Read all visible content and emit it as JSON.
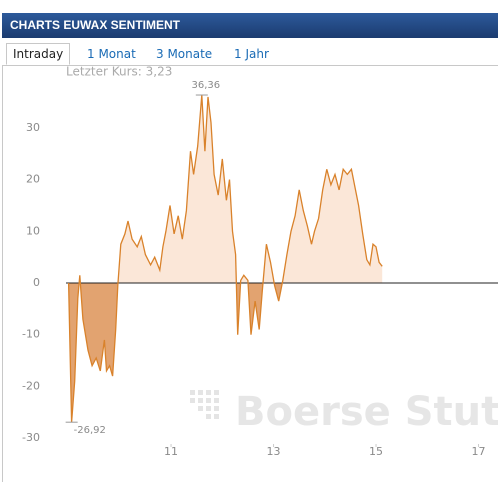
{
  "chart_data": {
    "type": "area",
    "title": "CHARTS EUWAX SENTIMENT",
    "tabs": [
      "Intraday",
      "1 Monat",
      "3 Monate",
      "1 Jahr"
    ],
    "subtitle": "Letzter Kurs: 3,23",
    "watermark": "Boerse Stuttgart",
    "max_label": "36,36",
    "min_label": "-26,92",
    "x": [
      9.0,
      9.06,
      9.12,
      9.18,
      9.22,
      9.28,
      9.38,
      9.46,
      9.54,
      9.62,
      9.7,
      9.74,
      9.8,
      9.86,
      9.92,
      9.96,
      10.02,
      10.1,
      10.16,
      10.24,
      10.34,
      10.42,
      10.5,
      10.6,
      10.68,
      10.78,
      10.84,
      10.9,
      10.98,
      11.06,
      11.14,
      11.22,
      11.3,
      11.38,
      11.44,
      11.52,
      11.6,
      11.66,
      11.72,
      11.78,
      11.84,
      11.92,
      12.0,
      12.08,
      12.14,
      12.2,
      12.26,
      12.3,
      12.36,
      12.42,
      12.5,
      12.56,
      12.64,
      12.72,
      12.78,
      12.86,
      12.94,
      13.02,
      13.1,
      13.18,
      13.26,
      13.34,
      13.42,
      13.5,
      13.58,
      13.66,
      13.74,
      13.8,
      13.88,
      13.96,
      14.04,
      14.12,
      14.2,
      14.28,
      14.36,
      14.44,
      14.52,
      14.6,
      14.66,
      14.74,
      14.82,
      14.88,
      14.94,
      15.0,
      15.06,
      15.12
    ],
    "series": [
      {
        "name": "Sentiment",
        "color": "#d9822b",
        "fill_positive": "#fbe7d8",
        "fill_negative": "#e2a370",
        "values": [
          0,
          -26.92,
          -19,
          -3,
          1.5,
          -7,
          -13,
          -16,
          -14.5,
          -17,
          -11,
          -17,
          -16,
          -18,
          -9,
          -0.5,
          7.5,
          9.5,
          12,
          8.5,
          7,
          9,
          5.5,
          3.5,
          5,
          2.5,
          7,
          10,
          15,
          9.5,
          13,
          8.5,
          14,
          25.5,
          21,
          26.5,
          36.36,
          25.5,
          36,
          31,
          21,
          17,
          24,
          16,
          20,
          10,
          5.5,
          -10,
          0.5,
          1.5,
          0.5,
          -10,
          -3.5,
          -9,
          -1.5,
          7.5,
          4,
          -0.5,
          -3.5,
          0.5,
          5.5,
          10,
          13,
          18,
          14,
          11,
          7.5,
          10,
          12.5,
          18,
          22,
          19,
          21,
          18,
          22,
          21,
          22,
          18,
          15,
          9.5,
          4.5,
          3.5,
          7.5,
          7,
          4,
          3.23
        ]
      }
    ],
    "xlim": [
      8.95,
      17.38
    ],
    "ylim": [
      -32.3,
      41.2
    ],
    "xticks": [
      11,
      13,
      15,
      17
    ],
    "yticks": [
      -30,
      -20,
      -10,
      0,
      10,
      20,
      30
    ],
    "zero_line": true,
    "grid": false
  }
}
